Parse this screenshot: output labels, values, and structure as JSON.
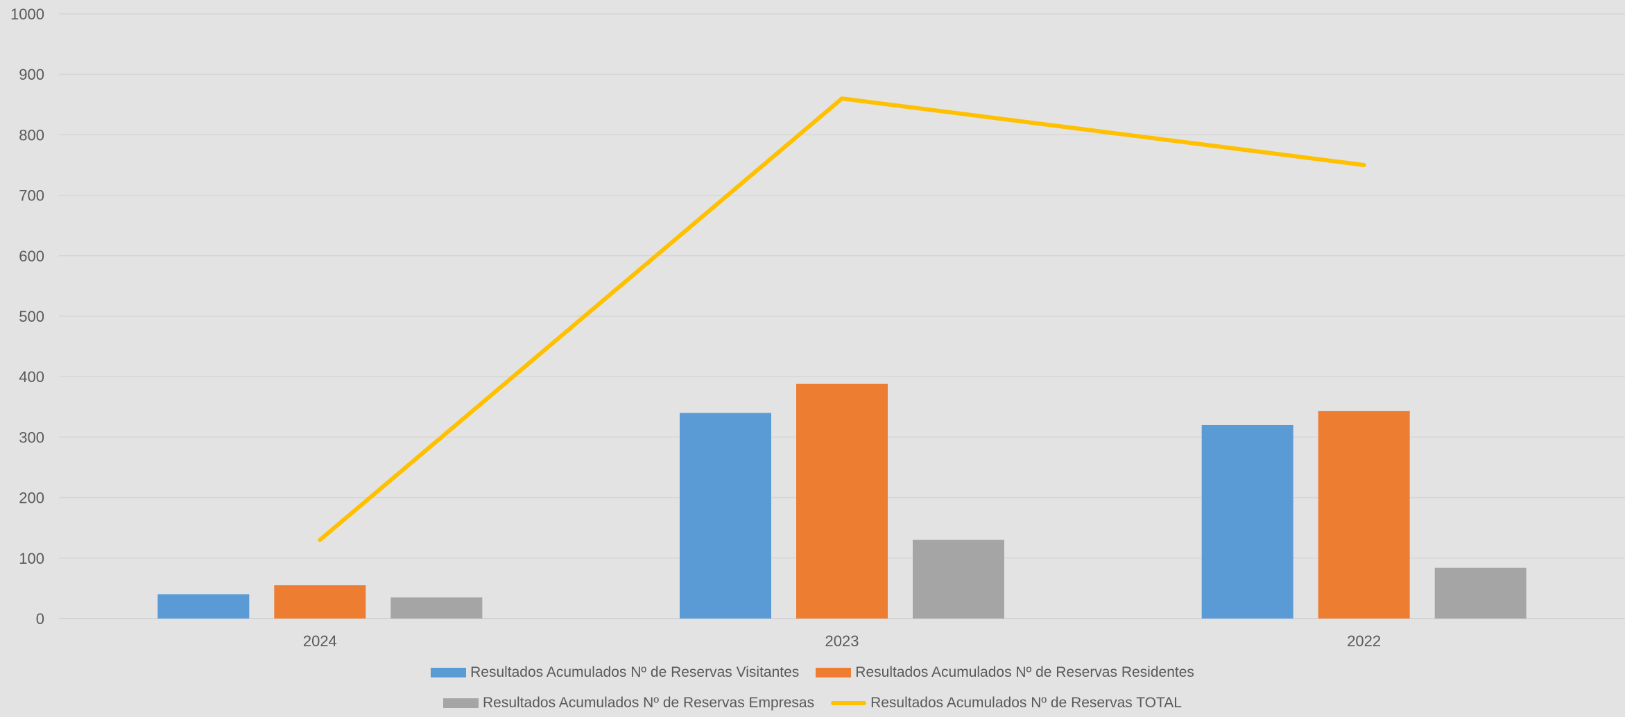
{
  "chart_data": {
    "type": "bar",
    "categories": [
      "2024",
      "2023",
      "2022"
    ],
    "series": [
      {
        "name": "Resultados Acumulados Nº de Reservas Visitantes",
        "kind": "bar",
        "color": "#5b9bd5",
        "values": [
          40,
          340,
          320
        ]
      },
      {
        "name": "Resultados Acumulados Nº de Reservas Residentes",
        "kind": "bar",
        "color": "#ed7d31",
        "values": [
          55,
          388,
          343
        ]
      },
      {
        "name": "Resultados Acumulados Nº de Reservas Empresas",
        "kind": "bar",
        "color": "#a5a5a5",
        "values": [
          35,
          130,
          84
        ]
      },
      {
        "name": "Resultados Acumulados Nº de Reservas TOTAL",
        "kind": "line",
        "color": "#ffc000",
        "values": [
          130,
          860,
          750
        ]
      }
    ],
    "ylim": [
      0,
      1000
    ],
    "yticks": [
      0,
      100,
      200,
      300,
      400,
      500,
      600,
      700,
      800,
      900,
      1000
    ],
    "grid": true,
    "legend_position": "bottom",
    "xlabel": "",
    "ylabel": ""
  }
}
